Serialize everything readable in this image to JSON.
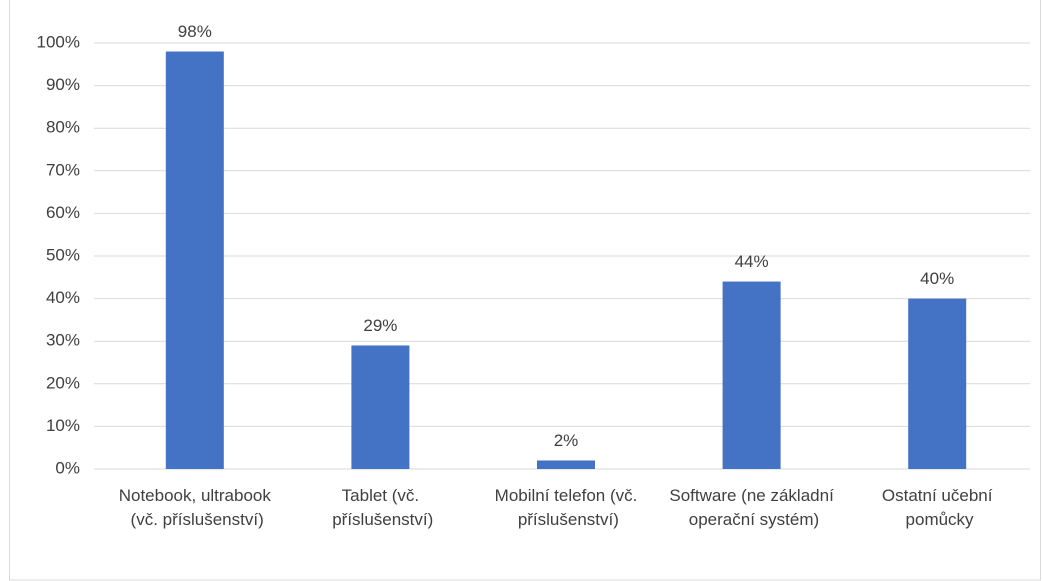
{
  "chart_data": {
    "type": "bar",
    "categories": [
      "Notebook, ultrabook (vč. příslušenství)",
      "Tablet (vč. příslušenství)",
      "Mobilní telefon (vč. příslušenství)",
      "Software (ne základní operační systém)",
      "Ostatní učební pomůcky"
    ],
    "values": [
      98,
      29,
      2,
      44,
      40
    ],
    "value_labels": [
      "98%",
      "29%",
      "2%",
      "44%",
      "40%"
    ],
    "color": "#4472c4",
    "ylim": [
      0,
      100
    ],
    "yticks": [
      {
        "value": 0,
        "label": "0%"
      },
      {
        "value": 10,
        "label": "10%"
      },
      {
        "value": 20,
        "label": "20%"
      },
      {
        "value": 30,
        "label": "30%"
      },
      {
        "value": 40,
        "label": "40%"
      },
      {
        "value": 50,
        "label": "50%"
      },
      {
        "value": 60,
        "label": "60%"
      },
      {
        "value": 70,
        "label": "70%"
      },
      {
        "value": 80,
        "label": "80%"
      },
      {
        "value": 90,
        "label": "90%"
      },
      {
        "value": 100,
        "label": "100%"
      }
    ],
    "grid": true
  }
}
